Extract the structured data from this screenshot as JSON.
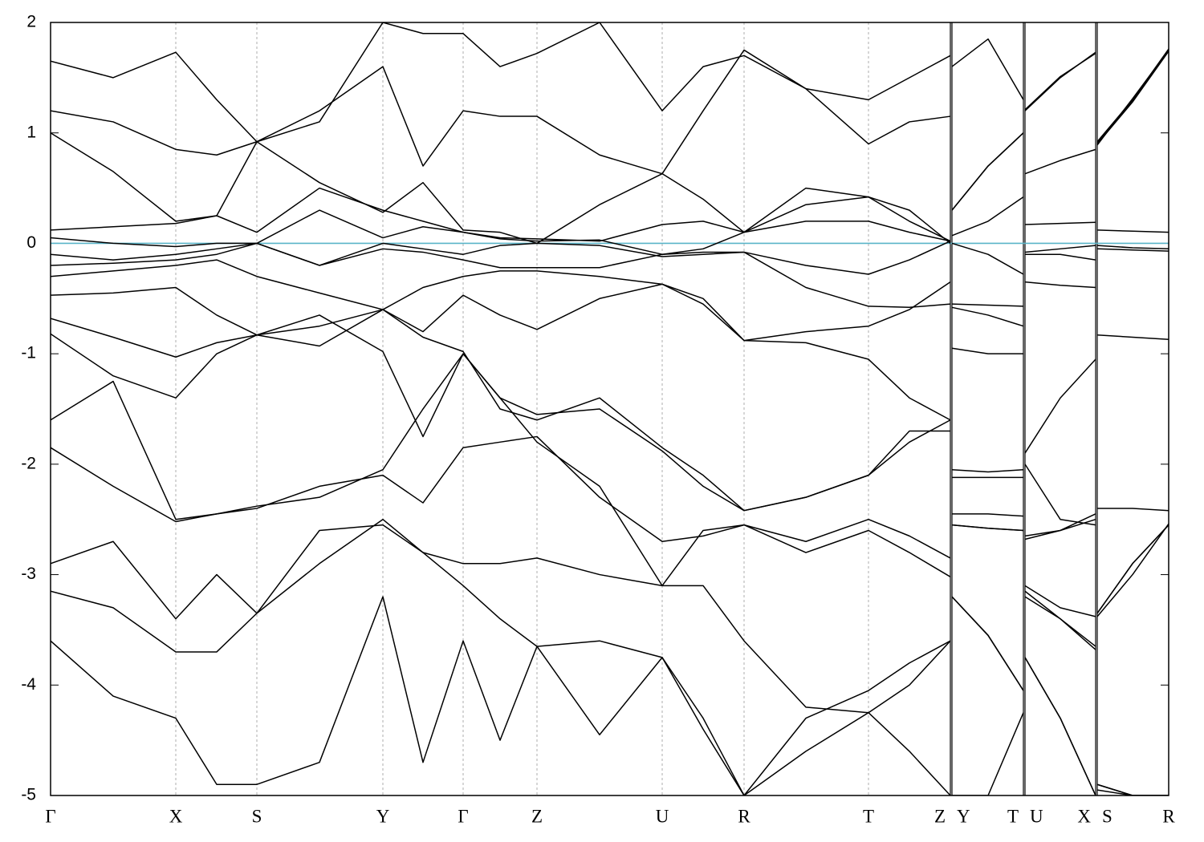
{
  "chart_data": {
    "type": "line",
    "line_color": "#000000",
    "reference_line": {
      "value": 0,
      "color": "#5ab4c8"
    },
    "xlim": [
      0,
      13.93
    ],
    "ylim": [
      -5,
      2
    ],
    "yticks": [
      -5,
      -4,
      -3,
      -2,
      -1,
      0,
      1,
      2
    ],
    "xticks": [
      {
        "value": 0,
        "label": "Γ"
      },
      {
        "value": 1.56,
        "label": "X"
      },
      {
        "value": 2.57,
        "label": "S"
      },
      {
        "value": 4.14,
        "label": "Y"
      },
      {
        "value": 5.14,
        "label": "Γ"
      },
      {
        "value": 6.06,
        "label": "Z"
      },
      {
        "value": 7.62,
        "label": "U"
      },
      {
        "value": 8.64,
        "label": "R"
      },
      {
        "value": 10.19,
        "label": "T"
      },
      {
        "value": 11.21,
        "label": "Z"
      },
      {
        "value": 11.23,
        "label": "Y"
      },
      {
        "value": 12.12,
        "label": "T"
      },
      {
        "value": 12.14,
        "label": "U"
      },
      {
        "value": 13.02,
        "label": "X"
      },
      {
        "value": 13.04,
        "label": "S"
      },
      {
        "value": 13.93,
        "label": "R"
      }
    ],
    "x": [
      0,
      0.78,
      1.56,
      2.07,
      2.57,
      3.35,
      4.14,
      4.64,
      5.14,
      5.6,
      6.06,
      6.84,
      7.62,
      8.13,
      8.64,
      9.41,
      10.19,
      10.7,
      11.21,
      11.22,
      11.23,
      11.68,
      12.12,
      12.13,
      12.14,
      12.58,
      13.02,
      13.03,
      13.04,
      13.48,
      13.93
    ],
    "series": [
      {
        "values": [
          0.12,
          0.15,
          0.18,
          0.25,
          0.1,
          0.5,
          0.3,
          0.2,
          0.1,
          0.05,
          0.04,
          0.02,
          0.17,
          0.2,
          0.1,
          0.35,
          0.42,
          0.3,
          0.0,
          null,
          0.07,
          0.2,
          0.42,
          null,
          0.17,
          0.18,
          0.19,
          null,
          0.12,
          0.11,
          0.1
        ]
      },
      {
        "values": [
          0.05,
          0.0,
          -0.03,
          0.0,
          0.0,
          0.3,
          0.05,
          0.15,
          0.1,
          0.04,
          0.02,
          0.03,
          -0.1,
          -0.05,
          0.1,
          0.5,
          0.42,
          0.2,
          0.02,
          null,
          0.0,
          -0.1,
          -0.28,
          null,
          -0.08,
          -0.05,
          -0.02,
          null,
          -0.02,
          -0.04,
          -0.05
        ]
      },
      {
        "values": [
          -0.1,
          -0.15,
          -0.1,
          -0.05,
          0.0,
          -0.2,
          0.0,
          -0.05,
          -0.1,
          -0.02,
          0.0,
          -0.02,
          -0.12,
          -0.1,
          -0.08,
          -0.2,
          -0.28,
          -0.15,
          0.02,
          null,
          -0.55,
          -0.56,
          -0.57,
          null,
          -0.1,
          -0.1,
          -0.15,
          null,
          -0.05,
          -0.06,
          -0.07
        ]
      },
      {
        "values": [
          -0.2,
          -0.18,
          -0.15,
          -0.1,
          0.0,
          -0.2,
          -0.05,
          -0.08,
          -0.15,
          -0.22,
          -0.22,
          -0.22,
          -0.1,
          -0.08,
          -0.08,
          -0.4,
          -0.57,
          -0.58,
          -0.55,
          null,
          -0.58,
          -0.65,
          -0.75,
          null,
          -0.35,
          -0.38,
          -0.4,
          null,
          -0.83,
          -0.85,
          -0.87
        ]
      },
      {
        "values": [
          -0.3,
          -0.25,
          -0.2,
          -0.15,
          -0.3,
          -0.45,
          -0.6,
          -0.4,
          -0.3,
          -0.25,
          -0.25,
          -0.3,
          -0.37,
          -0.5,
          -0.88,
          -0.9,
          -1.05,
          -1.4,
          -1.6,
          null,
          -0.95,
          -1.0,
          -1.0,
          null,
          -1.9,
          -1.4,
          -1.05,
          null,
          -2.4,
          -2.4,
          -2.42
        ]
      },
      {
        "values": [
          -0.47,
          -0.45,
          -0.4,
          -0.65,
          -0.83,
          -0.75,
          -0.6,
          -0.8,
          -0.47,
          -0.65,
          -0.78,
          -0.5,
          -0.37,
          -0.55,
          -0.88,
          -0.8,
          -0.75,
          -0.6,
          -0.35,
          null,
          -2.05,
          -2.07,
          -2.05,
          null,
          -2.0,
          -2.5,
          -2.55,
          null,
          -3.35,
          -2.9,
          -2.55
        ]
      },
      {
        "values": [
          -0.68,
          -0.85,
          -1.03,
          -0.9,
          -0.83,
          -0.93,
          -0.6,
          -0.85,
          -0.98,
          -1.5,
          -1.6,
          -1.4,
          -1.85,
          -2.1,
          -2.42,
          -2.3,
          -2.1,
          -1.8,
          -1.6,
          null,
          -2.12,
          -2.12,
          -2.12,
          null,
          -2.65,
          -2.6,
          -2.5,
          null,
          -3.38,
          -3.0,
          -2.54
        ]
      },
      {
        "values": [
          -0.82,
          -1.2,
          -1.4,
          -1.0,
          -0.83,
          -0.65,
          -0.98,
          -1.75,
          -1.0,
          -1.4,
          -1.55,
          -1.5,
          -1.88,
          -2.2,
          -2.42,
          -2.3,
          -2.1,
          -1.7,
          -1.7,
          null,
          -2.45,
          -2.45,
          -2.47,
          null,
          -2.68,
          -2.6,
          -2.45,
          null,
          -4.9,
          -5.0,
          -5.0
        ]
      },
      {
        "values": [
          -1.6,
          -1.25,
          -2.5,
          -2.45,
          -2.4,
          -2.2,
          -2.1,
          -2.35,
          -1.85,
          -1.8,
          -1.75,
          -2.3,
          -2.7,
          -2.65,
          -2.55,
          -2.7,
          -2.5,
          -2.65,
          -2.85,
          null,
          -2.55,
          -2.58,
          -2.6,
          null,
          -3.1,
          -3.3,
          -3.38,
          null,
          0.92,
          1.3,
          1.75
        ]
      },
      {
        "values": [
          -1.85,
          -2.2,
          -2.52,
          -2.45,
          -2.38,
          -2.3,
          -2.05,
          -1.5,
          -1.0,
          -1.4,
          -1.8,
          -2.2,
          -3.1,
          -2.6,
          -2.55,
          -2.8,
          -2.6,
          -2.8,
          -3.02,
          null,
          -3.2,
          -3.55,
          -4.05,
          null,
          -3.15,
          -3.4,
          -3.68,
          null,
          0.9,
          1.28,
          1.74
        ]
      },
      {
        "values": [
          -2.9,
          -2.7,
          -3.4,
          -3.0,
          -3.35,
          -2.9,
          -2.5,
          -2.8,
          -2.9,
          -2.9,
          -2.85,
          -3.0,
          -3.1,
          -3.1,
          -3.6,
          -4.2,
          -4.25,
          -4.6,
          -5.0,
          null,
          -5.0,
          -5.0,
          -4.25,
          null,
          -3.75,
          -4.3,
          -5.0,
          null,
          -4.95,
          -5.0,
          -5.0
        ]
      },
      {
        "values": [
          1.2,
          1.1,
          0.85,
          0.8,
          0.92,
          1.2,
          1.6,
          0.7,
          1.2,
          1.15,
          1.15,
          0.8,
          0.63,
          1.2,
          1.75,
          1.4,
          0.9,
          1.1,
          1.15,
          null,
          0.3,
          0.7,
          1.0,
          null,
          0.63,
          0.75,
          0.85,
          null,
          0.9,
          1.3,
          1.76
        ]
      },
      {
        "values": [
          1.65,
          1.5,
          1.73,
          1.3,
          0.92,
          1.1,
          2.0,
          1.9,
          1.9,
          1.6,
          1.72,
          2.0,
          1.2,
          1.6,
          1.7,
          1.4,
          1.3,
          1.5,
          1.7,
          null,
          1.6,
          1.85,
          1.3,
          null,
          1.2,
          1.5,
          1.73,
          null,
          0.91,
          1.29,
          1.75
        ]
      },
      {
        "values": [
          1.0,
          0.65,
          0.2,
          0.25,
          0.92,
          0.55,
          0.28,
          0.55,
          0.12,
          0.1,
          0.0,
          0.35,
          0.63,
          0.4,
          0.1,
          0.2,
          0.2,
          0.1,
          0.02,
          null,
          0.3,
          0.7,
          1.0,
          null,
          1.21,
          1.51,
          1.72,
          null,
          0.89,
          1.31,
          1.75
        ]
      },
      {
        "values": [
          -3.6,
          -4.1,
          -4.3,
          -4.9,
          -4.9,
          -4.7,
          -3.2,
          -4.7,
          -3.6,
          -4.5,
          -3.65,
          -4.45,
          -3.75,
          -4.4,
          -5.0,
          -4.3,
          -4.05,
          -3.8,
          -3.6,
          null,
          -3.2,
          -3.55,
          -4.05,
          null,
          -3.75,
          -4.3,
          -5.0,
          null,
          -4.9,
          -5.0,
          -5.0
        ]
      },
      {
        "values": [
          -3.15,
          -3.3,
          -3.7,
          -3.7,
          -3.35,
          -2.6,
          -2.55,
          -2.8,
          -3.1,
          -3.4,
          -3.65,
          -3.6,
          -3.75,
          -4.3,
          -5.0,
          -4.6,
          -4.25,
          -4.0,
          -3.6,
          null,
          -2.55,
          -2.58,
          -2.6,
          null,
          -3.2,
          -3.4,
          -3.65,
          null,
          -3.35,
          -2.9,
          -2.55
        ]
      }
    ]
  }
}
